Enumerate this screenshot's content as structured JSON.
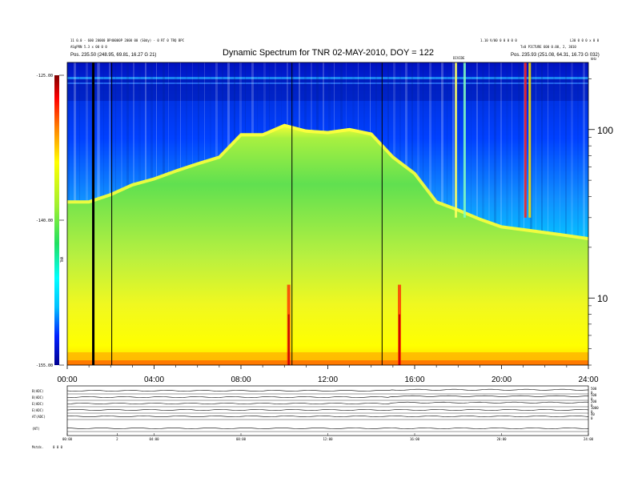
{
  "header": {
    "title": "Dynamic Spectrum for TNR 02-MAY-2010, DOY = 122",
    "left_line1": "11 0.0 - 600 20000 BP40000P 2000 00 (S0dy) - 0 RT 0 TRQ BPC",
    "left_line2": "ASgPRN 5.3 x 00 0 0",
    "left_line3": "Pos.    235.50 (248.95, 69.81, 16.27 G 21)",
    "right_line1": "1.10 V/00 0 0 0 0 0",
    "right_line2": "Tx0 PICTURE 600 0.00, 2, 3010",
    "right_line3": "Pos.    235.93 (251.08, 64.31, 16.73 G 032)",
    "right_corner": "L30 0 0 0 x 0 0"
  },
  "chart_data": {
    "type": "heatmap",
    "title": "Dynamic Spectrum for TNR 02-MAY-2010, DOY = 122",
    "x_axis": {
      "ticks": [
        "00:00",
        "04:00",
        "08:00",
        "12:00",
        "16:00",
        "20:00",
        "24:00"
      ],
      "range_hours": [
        0,
        24
      ]
    },
    "y_axis_right": {
      "scale": "log",
      "ticks": [
        "100",
        "10"
      ],
      "range": [
        4,
        250
      ]
    },
    "colorbar": {
      "label": "TNR",
      "ticks": [
        "-125.00",
        "-140.00",
        "-155.00"
      ],
      "range": [
        -155,
        -125
      ],
      "colors": [
        "#000090",
        "#0020ff",
        "#00c0ff",
        "#00ffff",
        "#20e060",
        "#a0f030",
        "#ffff00",
        "#ff8000",
        "#ff0000",
        "#800000"
      ]
    },
    "boundary": {
      "description_values_hours": [
        0,
        1,
        2,
        3,
        4,
        5,
        6,
        7,
        8,
        9,
        10,
        11,
        12,
        13,
        14,
        15,
        16,
        17,
        18,
        19,
        20,
        21,
        22,
        23,
        24
      ],
      "green_top_freq": [
        38,
        38,
        42,
        48,
        52,
        58,
        64,
        70,
        95,
        95,
        108,
        100,
        98,
        102,
        96,
        70,
        56,
        38,
        34,
        30,
        27,
        26,
        25,
        24,
        23
      ]
    },
    "vertical_lines_hours": [
      1.2,
      2.05,
      10.35,
      14.5
    ],
    "bright_bursts_hours": [
      10.2,
      15.3
    ],
    "burst_label": "DIVIDE",
    "right_unit": "kHz",
    "bottom_panels": {
      "labels": [
        "B(ADC)",
        "B(ADC)",
        "E(ADC)",
        "E(ADC)",
        "AT(ADC)",
        "(NT)"
      ],
      "right_scales": [
        [
          "500",
          "0"
        ],
        [
          "500",
          "0"
        ],
        [
          "200",
          "0"
        ],
        [
          "1000",
          "0"
        ],
        [
          "40",
          "0"
        ]
      ],
      "time_ticks": [
        "00:00",
        "2",
        "04:00",
        "08:00",
        "12:00",
        "16:00",
        "20:00",
        "24:00"
      ],
      "footer_label": "Mstds.",
      "footer_value": "0 0 0"
    }
  }
}
